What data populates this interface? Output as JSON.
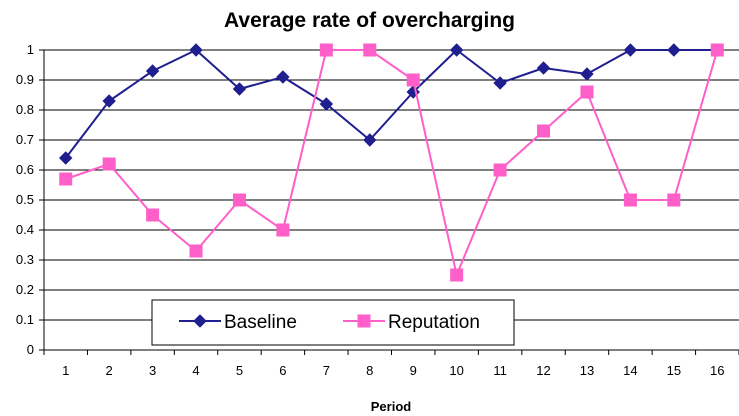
{
  "chart_data": {
    "type": "line",
    "title": "Average rate of overcharging",
    "xlabel": "Period",
    "ylabel": "",
    "x": [
      1,
      2,
      3,
      4,
      5,
      6,
      7,
      8,
      9,
      10,
      11,
      12,
      13,
      14,
      15,
      16
    ],
    "x_tick_labels": [
      "1",
      "2",
      "3",
      "4",
      "5",
      "6",
      "7",
      "8",
      "9",
      "10",
      "11",
      "12",
      "13",
      "14",
      "15",
      "16"
    ],
    "y_tick_labels": [
      "0",
      "0.1",
      "0.2",
      "0.3",
      "0.4",
      "0.5",
      "0.6",
      "0.7",
      "0.8",
      "0.9",
      "1"
    ],
    "ylim": [
      0,
      1
    ],
    "grid": true,
    "legend": {
      "placement": "bottom-left"
    },
    "series": [
      {
        "name": "Baseline",
        "marker": "diamond",
        "color": "#1f1f8f",
        "values": [
          0.64,
          0.83,
          0.93,
          1.0,
          0.87,
          0.91,
          0.82,
          0.7,
          0.86,
          1.0,
          0.89,
          0.94,
          0.92,
          1.0,
          1.0,
          1.0
        ]
      },
      {
        "name": "Reputation",
        "marker": "square",
        "color": "#ff5fc8",
        "values": [
          0.57,
          0.62,
          0.45,
          0.33,
          0.5,
          0.4,
          1.0,
          1.0,
          0.9,
          0.25,
          0.6,
          0.73,
          0.86,
          0.5,
          0.5,
          1.0
        ]
      }
    ]
  }
}
